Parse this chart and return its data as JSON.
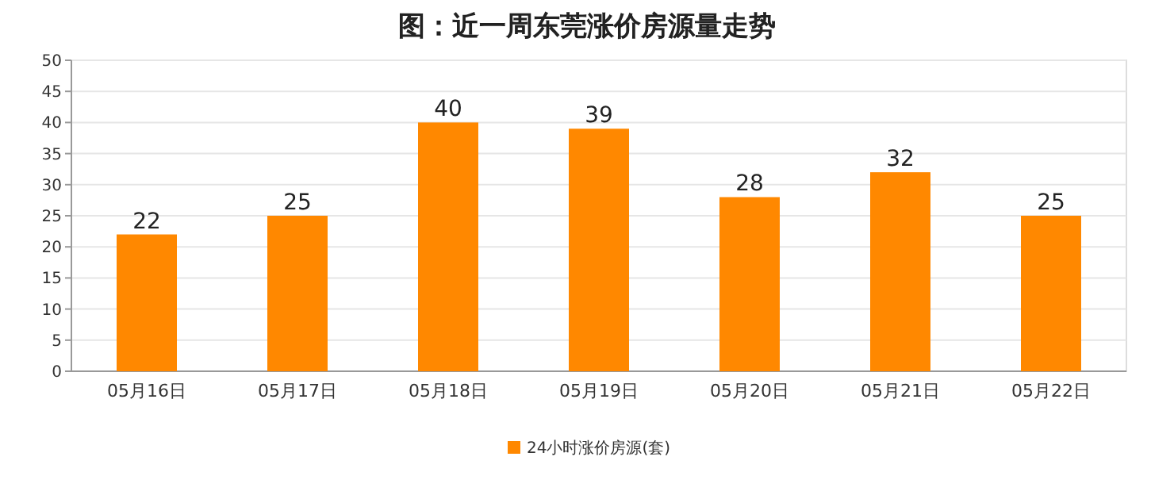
{
  "chart_data": {
    "type": "bar",
    "title": "图：近一周东莞涨价房源量走势",
    "categories": [
      "05月16日",
      "05月17日",
      "05月18日",
      "05月19日",
      "05月20日",
      "05月21日",
      "05月22日"
    ],
    "series": [
      {
        "name": "24小时涨价房源(套)",
        "color": "#ff8800",
        "values": [
          22,
          25,
          40,
          39,
          28,
          32,
          25
        ]
      }
    ],
    "ylim": [
      0,
      50
    ],
    "yticks": [
      0,
      5,
      10,
      15,
      20,
      25,
      30,
      35,
      40,
      45,
      50
    ],
    "grid": "y",
    "legend": "bottom",
    "data_labels": true
  }
}
